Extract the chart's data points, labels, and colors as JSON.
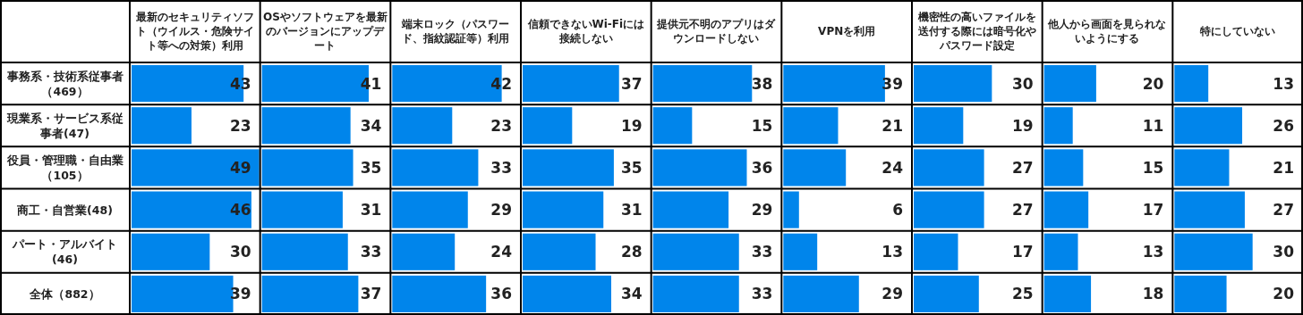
{
  "chart_data": [
    {
      "type": "bar",
      "orientation": "horizontal",
      "title": "最新のセキュリティソフト（ウイルス・危険サイト等への対策）利用",
      "categories": [
        "事務系・技術系従事者（469）",
        "現業系・サービス系従事者(47)",
        "役員・管理職・自由業（105）",
        "商工・自営業(48)",
        "パート・アルバイト(46)",
        "全体（882）"
      ],
      "values": [
        43,
        23,
        49,
        46,
        30,
        39
      ],
      "color": "#0085eb",
      "data_labels": true,
      "tick_labels": "y"
    },
    {
      "type": "bar",
      "orientation": "horizontal",
      "title": "OSやソフトウェアを最新のバージョンにアップデート",
      "categories": [
        null,
        null,
        null,
        null,
        null,
        null
      ],
      "values": [
        41,
        34,
        35,
        31,
        33,
        37
      ],
      "color": "#0085eb",
      "data_labels": true,
      "tick_labels": false
    },
    {
      "type": "bar",
      "orientation": "horizontal",
      "title": "端末ロック（パスワード、指紋認証等）利用",
      "categories": [
        null,
        null,
        null,
        null,
        null,
        null
      ],
      "values": [
        42,
        23,
        33,
        29,
        24,
        36
      ],
      "color": "#0085eb",
      "data_labels": true,
      "tick_labels": false
    },
    {
      "type": "bar",
      "orientation": "horizontal",
      "title": "信頼できないWi-Fiには接続しない",
      "categories": [
        null,
        null,
        null,
        null,
        null,
        null
      ],
      "values": [
        37,
        19,
        35,
        31,
        28,
        34
      ],
      "color": "#0085eb",
      "data_labels": true,
      "tick_labels": false
    },
    {
      "type": "bar",
      "orientation": "horizontal",
      "title": "提供元不明のアプリはダウンロードしない",
      "categories": [
        null,
        null,
        null,
        null,
        null,
        null
      ],
      "values": [
        38,
        15,
        36,
        29,
        33,
        33
      ],
      "color": "#0085eb",
      "data_labels": true,
      "tick_labels": false
    },
    {
      "type": "bar",
      "orientation": "horizontal",
      "title": "VPNを利用",
      "categories": [
        null,
        null,
        null,
        null,
        null,
        null
      ],
      "values": [
        39,
        21,
        24,
        6,
        13,
        29
      ],
      "color": "#0085eb",
      "data_labels": true,
      "tick_labels": false
    },
    {
      "type": "bar",
      "orientation": "horizontal",
      "title": "機密性の高いファイルを送付する際には暗号化やパスワード設定",
      "categories": [
        null,
        null,
        null,
        null,
        null,
        null
      ],
      "values": [
        30,
        19,
        27,
        27,
        17,
        25
      ],
      "color": "#0085eb",
      "data_labels": true,
      "tick_labels": false
    },
    {
      "type": "bar",
      "orientation": "horizontal",
      "title": "他人から画面を見られないようにする",
      "categories": [
        null,
        null,
        null,
        null,
        null,
        null
      ],
      "values": [
        20,
        11,
        15,
        17,
        13,
        18
      ],
      "color": "#0085eb",
      "data_labels": true,
      "tick_labels": false
    },
    {
      "type": "bar",
      "orientation": "horizontal",
      "title": "特にしていない",
      "categories": [
        null,
        null,
        null,
        null,
        null,
        null
      ],
      "values": [
        13,
        26,
        21,
        27,
        30,
        20
      ],
      "color": "#0085eb",
      "data_labels": true,
      "tick_labels": false
    }
  ]
}
